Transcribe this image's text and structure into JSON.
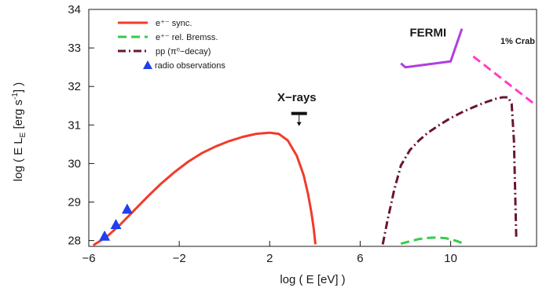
{
  "chart_data": {
    "type": "line",
    "xlabel": "log ( E [eV] )",
    "ylabel": "log ( E L_E [erg s^-1] )",
    "xlim": [
      -6,
      13.8
    ],
    "ylim": [
      27.85,
      34
    ],
    "x_ticks": [
      -6,
      -2,
      2,
      6,
      10
    ],
    "x_tick_labels": [
      "−6",
      "−2",
      "2",
      "6",
      "10"
    ],
    "y_ticks": [
      28,
      29,
      30,
      31,
      32,
      33,
      34
    ],
    "y_tick_labels": [
      "28",
      "29",
      "30",
      "31",
      "32",
      "33",
      "34"
    ],
    "grid": false,
    "legend_position": "top-left",
    "legend": [
      {
        "label": "e⁺⁻ sync.",
        "style": "solid",
        "color": "#f03c2a",
        "series": "sync"
      },
      {
        "label": "e⁺⁻ rel. Bremss.",
        "style": "dashed",
        "color": "#33cc4a",
        "series": "bremss"
      },
      {
        "label": "pp (π⁰−decay)",
        "style": "dashdot",
        "color": "#6a1436",
        "series": "pp"
      },
      {
        "label": "radio observations",
        "style": "triangle",
        "color": "#1f3ff0",
        "series": "radio"
      }
    ],
    "series": [
      {
        "name": "e⁺⁻ sync.",
        "key": "sync",
        "style": "solid",
        "color": "#f03c2a",
        "x": [
          -5.8,
          -5.2,
          -4.6,
          -4.0,
          -3.4,
          -2.8,
          -2.2,
          -1.6,
          -1.0,
          -0.4,
          0.2,
          0.8,
          1.4,
          2.0,
          2.4,
          2.8,
          3.2,
          3.5,
          3.7,
          3.85,
          3.95,
          4.02
        ],
        "y": [
          27.88,
          28.1,
          28.42,
          28.78,
          29.14,
          29.48,
          29.78,
          30.05,
          30.27,
          30.44,
          30.58,
          30.69,
          30.77,
          30.8,
          30.77,
          30.6,
          30.2,
          29.7,
          29.2,
          28.7,
          28.3,
          27.9
        ]
      },
      {
        "name": "e⁺⁻ rel. Bremss.",
        "key": "bremss",
        "style": "dashed",
        "color": "#33cc4a",
        "x": [
          7.8,
          8.2,
          8.6,
          9.0,
          9.4,
          9.8,
          10.2,
          10.6
        ],
        "y": [
          27.92,
          27.98,
          28.04,
          28.07,
          28.08,
          28.06,
          28.0,
          27.92
        ]
      },
      {
        "name": "pp (π⁰−decay)",
        "key": "pp",
        "style": "dashdot",
        "color": "#6a1436",
        "x": [
          7.0,
          7.2,
          7.5,
          7.8,
          8.2,
          8.6,
          9.0,
          9.5,
          10.0,
          10.5,
          11.0,
          11.5,
          12.0,
          12.3,
          12.55,
          12.7,
          12.8,
          12.85,
          12.9
        ],
        "y": [
          27.9,
          28.5,
          29.3,
          29.95,
          30.35,
          30.6,
          30.8,
          31.0,
          31.18,
          31.33,
          31.46,
          31.58,
          31.68,
          31.72,
          31.72,
          31.55,
          30.6,
          29.3,
          28.1
        ]
      },
      {
        "name": "radio observations",
        "key": "radio",
        "style": "triangle",
        "color": "#1f3ff0",
        "x": [
          -5.3,
          -4.8,
          -4.3
        ],
        "y": [
          28.1,
          28.4,
          28.8
        ]
      },
      {
        "name": "FERMI",
        "key": "fermi",
        "style": "solid",
        "color": "#b03fe0",
        "x": [
          7.8,
          8.0,
          10.0,
          10.5
        ],
        "y": [
          32.6,
          32.5,
          32.65,
          33.5
        ]
      },
      {
        "name": "1% Crab",
        "key": "crab",
        "style": "dashed",
        "color": "#ff3fc8",
        "x": [
          11.0,
          13.8
        ],
        "y": [
          32.78,
          31.5
        ]
      }
    ],
    "annotations": [
      {
        "text": "FERMI",
        "x": 9.0,
        "y": 33.3,
        "style": "bold"
      },
      {
        "text": "1% Crab",
        "x": 12.2,
        "y": 33.1,
        "style": "small-bold",
        "clipped": true
      },
      {
        "text": "X−rays",
        "x": 3.2,
        "y": 31.62,
        "style": "bold"
      }
    ],
    "upper_limits": [
      {
        "label": "X−rays",
        "x": 3.3,
        "y": 31.3
      }
    ]
  }
}
